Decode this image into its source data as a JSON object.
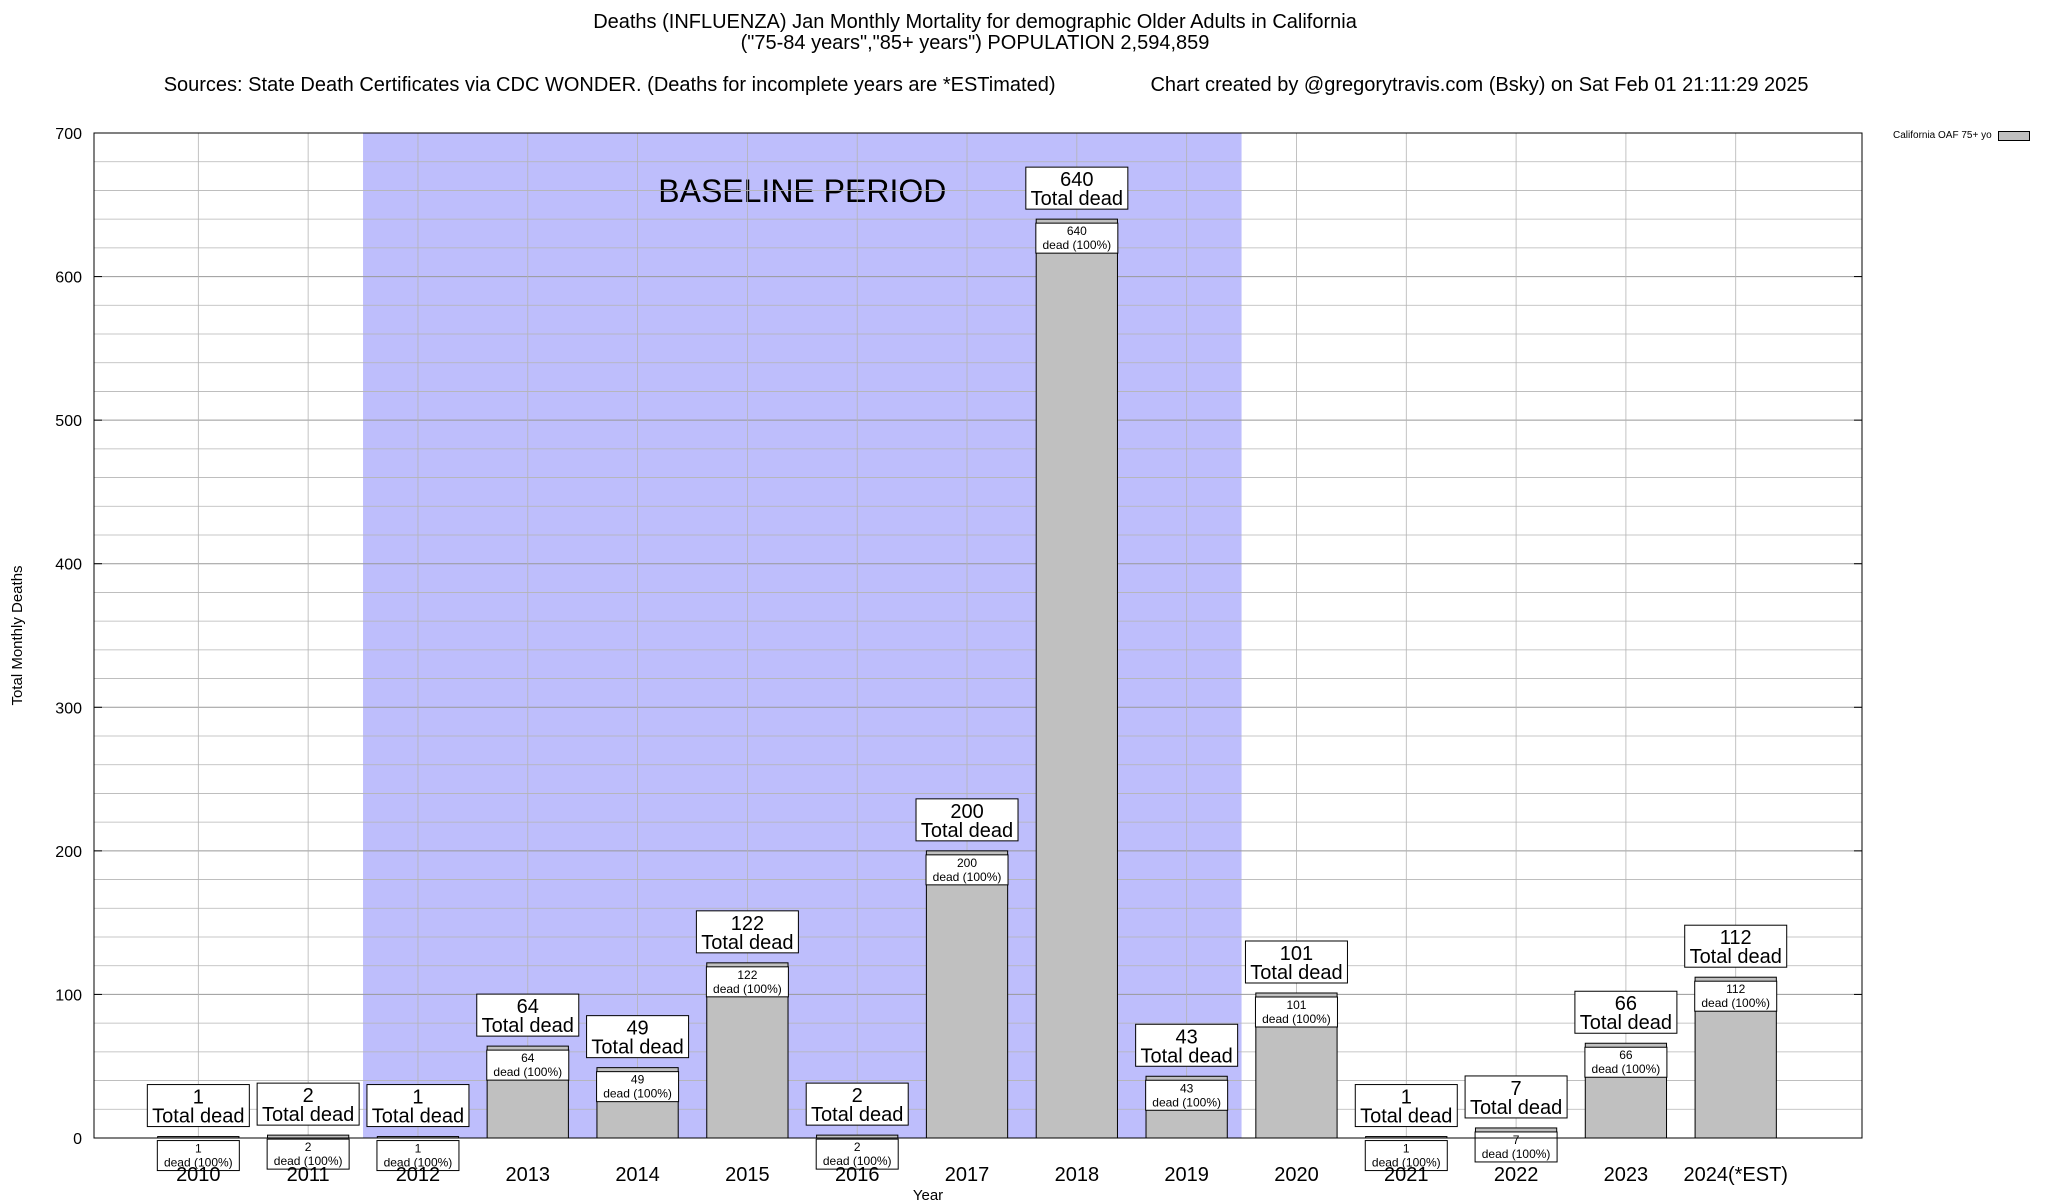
{
  "header": {
    "title": "Deaths (INFLUENZA) Jan Monthly Mortality for demographic Older Adults in California",
    "subtitle": "(\"75-84 years\",\"85+ years\") POPULATION 2,594,859",
    "sources": "Sources: State Death Certificates via CDC WONDER. (Deaths for incomplete years are *ESTimated)",
    "credit": "Chart created by @gregorytravis.com (Bsky) on Sat Feb 01 21:11:29 2025"
  },
  "chart_data": {
    "type": "bar",
    "xlabel": "Year",
    "ylabel": "Total Monthly Deaths",
    "ylim": [
      0,
      700
    ],
    "yticks": [
      0,
      100,
      200,
      300,
      400,
      500,
      600,
      700
    ],
    "categories": [
      "2010",
      "2011",
      "2012",
      "2013",
      "2014",
      "2015",
      "2016",
      "2017",
      "2018",
      "2019",
      "2020",
      "2021",
      "2022",
      "2023",
      "2024(*EST)"
    ],
    "series": [
      {
        "name": "California OAF 75+ yo",
        "values": [
          1,
          2,
          1,
          64,
          49,
          122,
          2,
          200,
          640,
          43,
          101,
          1,
          7,
          66,
          112
        ]
      }
    ],
    "top_label_suffix": "Total dead",
    "inner_label_suffix": "dead (100%)",
    "baseline": {
      "label": "BASELINE PERIOD",
      "start": "2012",
      "end": "2019"
    },
    "grid": true,
    "legend": "top-right",
    "colors": {
      "bar": "#c0c0c0",
      "baseline": "#bebefc",
      "grid": "#b4b4b4"
    }
  }
}
